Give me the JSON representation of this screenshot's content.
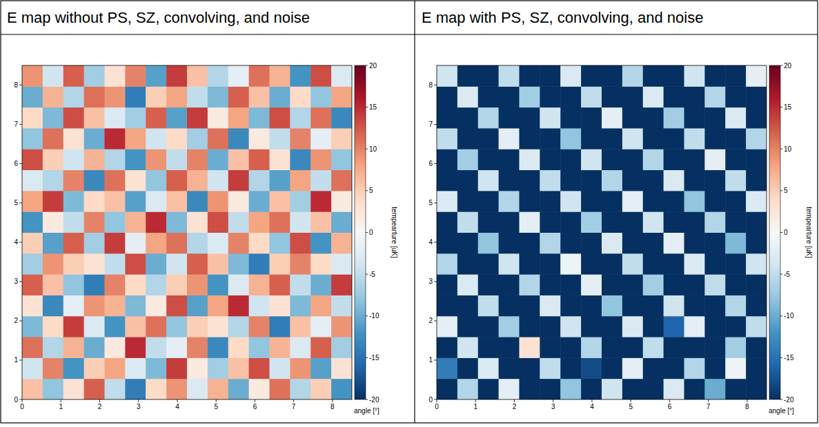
{
  "chart_data": [
    {
      "type": "heatmap",
      "title": "E map without PS, SZ, convolving, and noise",
      "xlabel": "angle [°]",
      "colorbar_label": "tempearture [uK]",
      "xlim": [
        0,
        8.5
      ],
      "ylim": [
        0,
        8.5
      ],
      "xticks": [
        0,
        1,
        2,
        3,
        4,
        5,
        6,
        7,
        8
      ],
      "yticks": [
        0,
        1,
        2,
        3,
        4,
        5,
        6,
        7,
        8
      ],
      "colorbar_range": [
        -20,
        20
      ],
      "colorbar_ticks": [
        -20,
        -15,
        -10,
        -5,
        0,
        5,
        10,
        15,
        20
      ],
      "cells": [
        [
          6,
          -8,
          3,
          12,
          -5,
          -14,
          4,
          9,
          -3,
          7,
          -10,
          2,
          11,
          -6,
          5,
          -12
        ],
        [
          -4,
          10,
          -12,
          5,
          8,
          -3,
          -9,
          14,
          2,
          -7,
          6,
          13,
          -4,
          9,
          -11,
          3
        ],
        [
          11,
          -6,
          7,
          -10,
          2,
          15,
          -5,
          -2,
          10,
          -13,
          4,
          -8,
          7,
          -3,
          12,
          -7
        ],
        [
          -9,
          4,
          14,
          -3,
          -12,
          6,
          11,
          -8,
          5,
          3,
          -6,
          10,
          -14,
          6,
          -2,
          9
        ],
        [
          3,
          -13,
          -2,
          9,
          7,
          -9,
          2,
          13,
          -11,
          8,
          15,
          -4,
          3,
          -9,
          8,
          -5
        ],
        [
          12,
          6,
          -8,
          -14,
          10,
          4,
          -6,
          5,
          9,
          -12,
          -3,
          7,
          12,
          -5,
          -10,
          14
        ],
        [
          -7,
          9,
          5,
          3,
          -5,
          13,
          -10,
          -4,
          12,
          6,
          -9,
          -14,
          5,
          10,
          4,
          -3
        ],
        [
          5,
          -11,
          12,
          -7,
          14,
          -2,
          8,
          11,
          -6,
          -3,
          10,
          4,
          -8,
          13,
          -12,
          7
        ],
        [
          -12,
          2,
          -5,
          10,
          -8,
          7,
          15,
          -9,
          3,
          13,
          -5,
          8,
          11,
          -4,
          6,
          -10
        ],
        [
          8,
          14,
          -9,
          4,
          6,
          -11,
          -3,
          6,
          -13,
          9,
          2,
          -10,
          6,
          -7,
          15,
          2
        ],
        [
          -3,
          -6,
          10,
          -13,
          11,
          3,
          -8,
          12,
          7,
          -4,
          14,
          -6,
          -11,
          8,
          -5,
          11
        ],
        [
          13,
          5,
          -4,
          7,
          -6,
          -12,
          9,
          -5,
          10,
          -10,
          6,
          12,
          3,
          -13,
          9,
          -8
        ],
        [
          -8,
          11,
          3,
          -10,
          15,
          8,
          -4,
          4,
          -7,
          11,
          -13,
          2,
          -5,
          10,
          -2,
          5
        ],
        [
          4,
          -9,
          13,
          6,
          -3,
          -7,
          12,
          -11,
          14,
          2,
          8,
          -9,
          13,
          -6,
          11,
          -13
        ],
        [
          -10,
          7,
          -6,
          11,
          9,
          -14,
          5,
          8,
          -5,
          -9,
          12,
          6,
          -10,
          4,
          -8,
          8
        ],
        [
          9,
          -4,
          12,
          -7,
          3,
          10,
          -11,
          14,
          6,
          -6,
          -2,
          11,
          7,
          -12,
          13,
          -3
        ]
      ]
    },
    {
      "type": "heatmap",
      "title": "E map with PS, SZ, convolving, and noise",
      "xlabel": "angle [°]",
      "colorbar_label": "tempearture [uK]",
      "xlim": [
        0,
        8.5
      ],
      "ylim": [
        0,
        8.5
      ],
      "xticks": [
        0,
        1,
        2,
        3,
        4,
        5,
        6,
        7,
        8
      ],
      "yticks": [
        0,
        1,
        2,
        3,
        4,
        5,
        6,
        7,
        8
      ],
      "colorbar_range": [
        -20,
        20
      ],
      "colorbar_ticks": [
        -20,
        -15,
        -10,
        -5,
        0,
        5,
        10,
        15,
        20
      ],
      "cells": [
        [
          -20,
          -6,
          -20,
          -2,
          -20,
          -20,
          -8,
          -20,
          -4,
          -20,
          -20,
          -3,
          -20,
          -10,
          -20,
          -20
        ],
        [
          -14,
          -20,
          -3,
          -20,
          -20,
          -5,
          -20,
          -18,
          -20,
          -2,
          -20,
          -20,
          -6,
          -20,
          -1,
          -20
        ],
        [
          -20,
          -4,
          -20,
          -20,
          3,
          -20,
          -20,
          -6,
          -20,
          -20,
          -5,
          -20,
          -20,
          -20,
          -7,
          -20
        ],
        [
          -2,
          -20,
          -20,
          -7,
          -20,
          -20,
          -4,
          -20,
          -20,
          -3,
          -20,
          -16,
          -2,
          -20,
          -20,
          -5
        ],
        [
          -20,
          -20,
          -5,
          -20,
          -20,
          -3,
          -20,
          -20,
          -8,
          -20,
          -20,
          -4,
          -20,
          -20,
          -6,
          -20
        ],
        [
          -20,
          -3,
          -20,
          -20,
          -6,
          -20,
          -20,
          -2,
          -20,
          -20,
          -7,
          -20,
          -20,
          -5,
          -20,
          -20
        ],
        [
          -6,
          -20,
          -20,
          -4,
          -20,
          -20,
          -1,
          -20,
          -20,
          -5,
          -20,
          -20,
          -3,
          -20,
          -20,
          -4
        ],
        [
          -20,
          -20,
          -8,
          -20,
          -20,
          -6,
          -20,
          -20,
          -3,
          -20,
          -20,
          -2,
          -20,
          -20,
          -9,
          -20
        ],
        [
          -20,
          -5,
          -20,
          -20,
          -2,
          -20,
          -20,
          -7,
          -20,
          -20,
          -4,
          -20,
          -20,
          -6,
          -20,
          -20
        ],
        [
          -3,
          -20,
          -20,
          -6,
          -20,
          -20,
          -4,
          -20,
          -20,
          -2,
          -20,
          -20,
          -8,
          -20,
          -20,
          -3
        ],
        [
          -20,
          -20,
          -4,
          -20,
          -20,
          -5,
          -20,
          -20,
          -6,
          -20,
          -20,
          -3,
          -20,
          -20,
          -5,
          -20
        ],
        [
          -20,
          -7,
          -20,
          -20,
          -3,
          -20,
          -20,
          -4,
          -20,
          -20,
          -6,
          -20,
          -20,
          -2,
          -20,
          -20
        ],
        [
          -5,
          -20,
          -20,
          -2,
          -20,
          -20,
          -8,
          -20,
          -20,
          -4,
          -20,
          -20,
          -5,
          -20,
          -20,
          -6
        ],
        [
          -20,
          -20,
          -6,
          -20,
          -20,
          -4,
          -20,
          -20,
          -2,
          -20,
          -20,
          -7,
          -20,
          -20,
          -3,
          -20
        ],
        [
          -20,
          -3,
          -20,
          -20,
          -7,
          -20,
          -20,
          -5,
          -20,
          -20,
          -3,
          -20,
          -20,
          -6,
          -20,
          -20
        ],
        [
          -4,
          -20,
          -20,
          -5,
          -20,
          -20,
          -3,
          -20,
          -20,
          -6,
          -20,
          -20,
          -4,
          -20,
          -20,
          -2
        ]
      ]
    }
  ]
}
